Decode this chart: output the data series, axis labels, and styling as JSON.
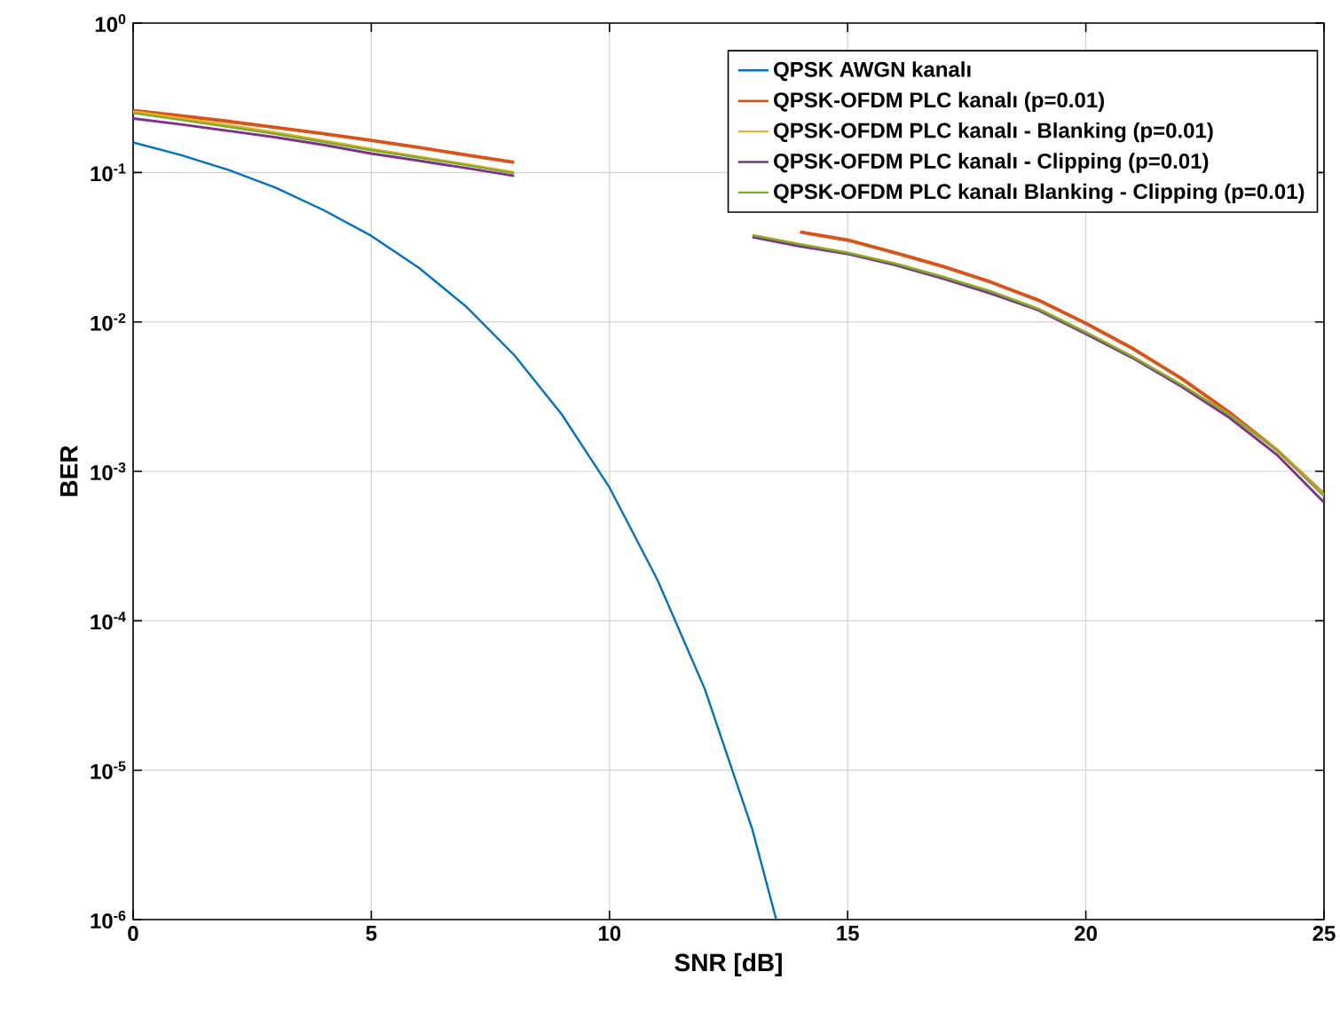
{
  "chart_data": {
    "type": "line",
    "xlabel": "SNR [dB]",
    "ylabel": "BER",
    "log": "y",
    "grid": true,
    "legend": "top right",
    "line_style": "solid",
    "marker": "none",
    "xlim": [
      0,
      25
    ],
    "xticks": [
      0,
      5,
      10,
      15,
      20,
      25
    ],
    "ylim": [
      1e-06,
      1
    ],
    "yticks": [
      {
        "value": 1e-06,
        "label": "10$^{-6}$"
      },
      {
        "value": 1e-05,
        "label": "10$^{-5}$"
      },
      {
        "value": 0.0001,
        "label": "10$^{-4}$"
      },
      {
        "value": 0.001,
        "label": "10$^{-3}$"
      },
      {
        "value": 0.01,
        "label": "10$^{-2}$"
      },
      {
        "value": 0.1,
        "label": "10$^{-1}$"
      },
      {
        "value": 1,
        "label": "10$^{0}$"
      }
    ],
    "series": [
      {
        "name": "QPSK AWGN kanalı",
        "color": "#0072bd",
        "x": [
          0,
          1,
          2,
          3,
          4,
          5,
          6,
          7,
          8,
          9,
          10,
          11,
          12,
          13,
          13.5
        ],
        "values": [
          0.159,
          0.131,
          0.104,
          0.079,
          0.056,
          0.0377,
          0.023,
          0.0126,
          0.006,
          0.0024,
          0.00078,
          0.00019,
          3.5e-05,
          4e-06,
          1e-06
        ]
      },
      {
        "name": "QPSK-OFDM PLC kanalı (p=0.01)",
        "color": "#d95319",
        "x": [
          0,
          1,
          2,
          3,
          4,
          5,
          6,
          7,
          8,
          9,
          10,
          11,
          12,
          13,
          14,
          15,
          16,
          17,
          18,
          19,
          20,
          21,
          22,
          23,
          24,
          25
        ],
        "values": [
          0.26,
          0.24,
          0.22,
          0.2,
          0.182,
          0.164,
          0.147,
          0.131,
          0.117,
          null,
          null,
          null,
          null,
          null,
          0.04,
          0.0353,
          0.029,
          0.0235,
          0.0185,
          0.014,
          0.0098,
          0.0066,
          0.0042,
          0.0025,
          0.0014,
          0.0007
        ]
      },
      {
        "name": "QPSK-OFDM PLC kanalı - Blanking (p=0.01)",
        "color": "#edb120",
        "x": [
          0,
          1,
          2,
          3,
          4,
          5,
          6,
          7,
          8,
          9,
          10,
          11,
          12,
          13,
          14,
          15,
          16,
          17,
          18,
          19,
          20,
          21,
          22,
          23,
          24,
          25
        ],
        "values": [
          0.255,
          0.23,
          0.206,
          0.184,
          0.163,
          0.143,
          0.127,
          0.113,
          0.1,
          null,
          null,
          null,
          null,
          0.038,
          0.033,
          0.029,
          0.0245,
          0.02,
          0.016,
          0.0122,
          0.0085,
          0.0058,
          0.0038,
          0.0024,
          0.0014,
          0.00069
        ]
      },
      {
        "name": "QPSK-OFDM PLC kanalı - Clipping (p=0.01)",
        "color": "#7e2f8e",
        "x": [
          0,
          1,
          2,
          3,
          4,
          5,
          6,
          7,
          8,
          9,
          10,
          11,
          12,
          13,
          14,
          15,
          16,
          17,
          18,
          19,
          20,
          21,
          22,
          23,
          24,
          25
        ],
        "values": [
          0.23,
          0.21,
          0.19,
          0.172,
          0.153,
          0.134,
          0.12,
          0.107,
          0.095,
          null,
          null,
          null,
          null,
          0.037,
          0.032,
          0.0285,
          0.024,
          0.0195,
          0.0155,
          0.012,
          0.0083,
          0.0057,
          0.0037,
          0.0023,
          0.0013,
          0.00062
        ]
      },
      {
        "name": "QPSK-OFDM PLC kanalı Blanking - Clipping (p=0.01)",
        "color": "#77ac30",
        "x": [
          0,
          1,
          2,
          3,
          4,
          5,
          6,
          7,
          8,
          9,
          10,
          11,
          12,
          13,
          14,
          15,
          16,
          17,
          18,
          19,
          20,
          21,
          22,
          23,
          24,
          25
        ],
        "values": [
          0.25,
          0.225,
          0.202,
          0.181,
          0.16,
          0.141,
          0.126,
          0.112,
          0.099,
          null,
          null,
          null,
          null,
          0.038,
          0.033,
          0.029,
          0.0245,
          0.02,
          0.016,
          0.0122,
          0.0085,
          0.0058,
          0.0038,
          0.0024,
          0.0014,
          0.00068
        ]
      }
    ]
  }
}
